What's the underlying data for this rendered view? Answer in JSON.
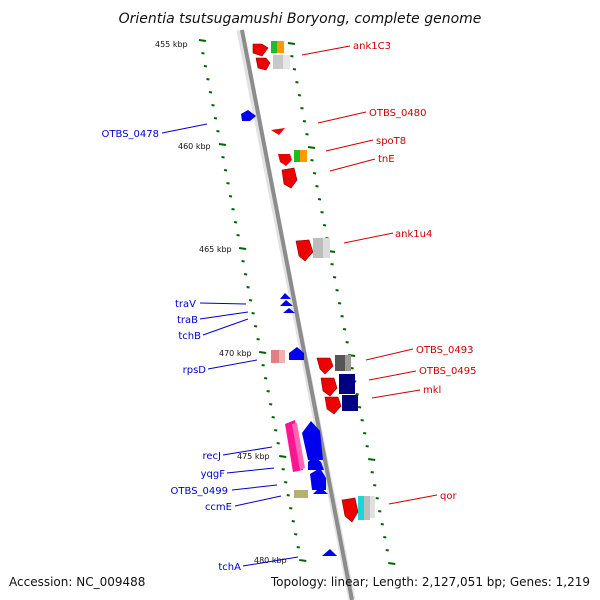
{
  "title": "Orientia tsutsugamushi Boryong, complete genome",
  "footer": {
    "accession": "Accession: NC_009488",
    "topology": "Topology: linear; Length: 2,127,051 bp; Genes: 1,219"
  },
  "colors": {
    "backbone": "#999999",
    "tick": "#006600",
    "left_label": "#0000cc",
    "right_label": "#cc0000"
  },
  "scale_labels": [
    "455 kbp",
    "460 kbp",
    "465 kbp",
    "470 kbp",
    "475 kbp",
    "480 kbp"
  ],
  "left_labels": [
    "OTBS_0478",
    "traV",
    "traB",
    "tchB",
    "rpsD",
    "recJ",
    "yqgF",
    "OTBS_0499",
    "ccmE",
    "tchA"
  ],
  "right_labels": [
    "ank1C3",
    "OTBS_0480",
    "spoT8",
    "tnE",
    "ank1u4",
    "OTBS_0493",
    "OTBS_0495",
    "mkl",
    "qor"
  ]
}
